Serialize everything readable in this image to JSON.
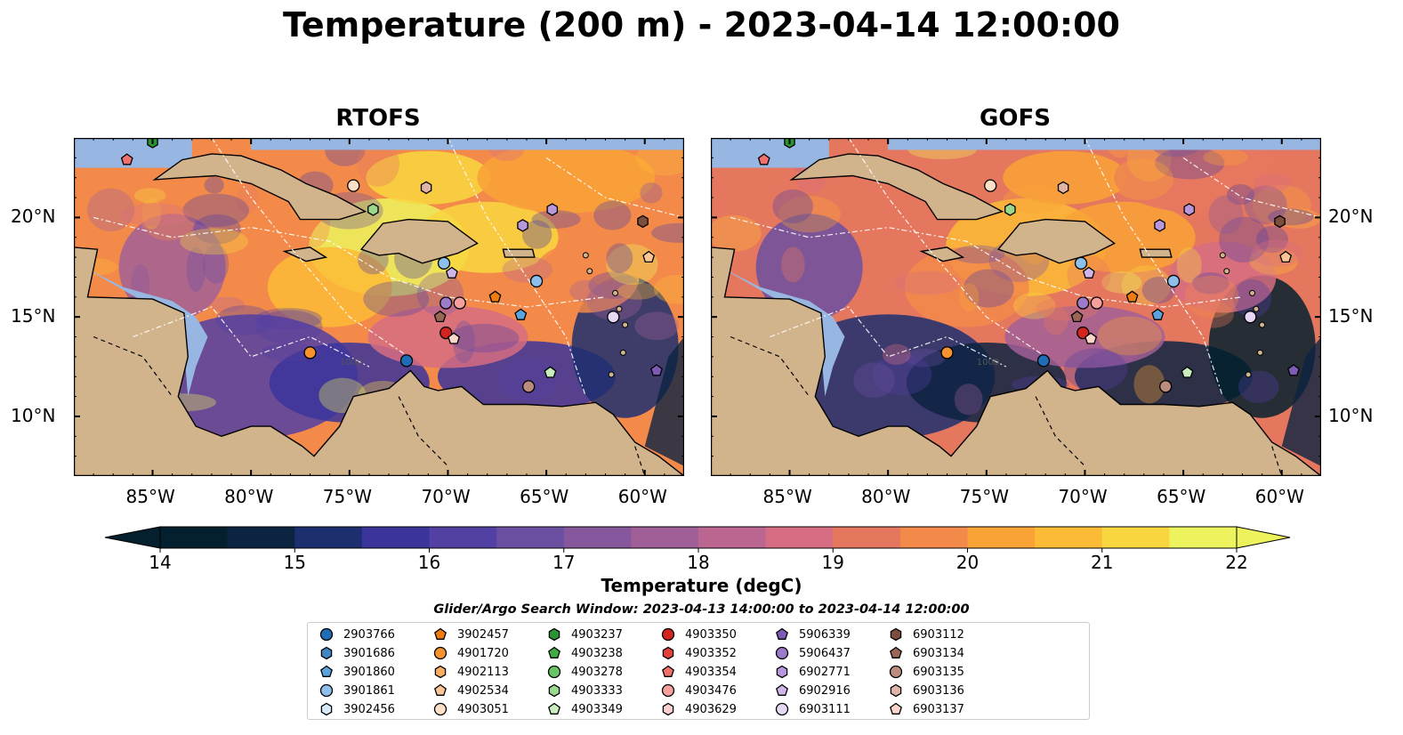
{
  "title": "Temperature (200 m) - 2023-04-14 12:00:00",
  "panels": [
    {
      "title": "RTOFS"
    },
    {
      "title": "GOFS"
    }
  ],
  "axes": {
    "lon_ticks": [
      "85°W",
      "80°W",
      "75°W",
      "70°W",
      "65°W",
      "60°W"
    ],
    "lat_ticks": [
      "20°N",
      "15°N",
      "10°N"
    ],
    "lon_range": [
      -89,
      -58
    ],
    "lat_range": [
      7,
      24
    ]
  },
  "colorbar": {
    "label": "Temperature (degC)",
    "ticks": [
      "14",
      "15",
      "16",
      "17",
      "18",
      "19",
      "20",
      "21",
      "22"
    ],
    "range": [
      14,
      22
    ],
    "extend": "both",
    "colors": [
      "#04202e",
      "#0c2342",
      "#1d2f6e",
      "#3b349b",
      "#5240a2",
      "#6b4fa0",
      "#87579d",
      "#a15f97",
      "#bb6690",
      "#d66d83",
      "#e6775f",
      "#f38a4a",
      "#f9a236",
      "#fcbb36",
      "#f8d63f",
      "#ecf35c"
    ]
  },
  "legend": {
    "title": "Glider/Argo Search Window: 2023-04-13 14:00:00 to 2023-04-14 12:00:00",
    "items": [
      {
        "label": "2903766",
        "marker": "circle",
        "color": "#1f6db5"
      },
      {
        "label": "3901686",
        "marker": "hexagon",
        "color": "#3f86c4"
      },
      {
        "label": "3901860",
        "marker": "pentagon",
        "color": "#5aa3dc"
      },
      {
        "label": "3901861",
        "marker": "circle",
        "color": "#8cc0ea"
      },
      {
        "label": "3902456",
        "marker": "hexagon",
        "color": "#d6eaf8"
      },
      {
        "label": "3902457",
        "marker": "pentagon",
        "color": "#ee7d11"
      },
      {
        "label": "4901720",
        "marker": "circle",
        "color": "#f7932e"
      },
      {
        "label": "4902113",
        "marker": "hexagon",
        "color": "#f8ac62"
      },
      {
        "label": "4902534",
        "marker": "pentagon",
        "color": "#fbc596"
      },
      {
        "label": "4903051",
        "marker": "circle",
        "color": "#fde0c6"
      },
      {
        "label": "4903237",
        "marker": "hexagon",
        "color": "#2a9433"
      },
      {
        "label": "4903238",
        "marker": "pentagon",
        "color": "#40ad44"
      },
      {
        "label": "4903278",
        "marker": "circle",
        "color": "#67c466"
      },
      {
        "label": "4903333",
        "marker": "hexagon",
        "color": "#9ad98d"
      },
      {
        "label": "4903349",
        "marker": "pentagon",
        "color": "#c8eec0"
      },
      {
        "label": "4903350",
        "marker": "circle",
        "color": "#d3251f"
      },
      {
        "label": "4903352",
        "marker": "hexagon",
        "color": "#e2403c"
      },
      {
        "label": "4903354",
        "marker": "pentagon",
        "color": "#f0716c"
      },
      {
        "label": "4903476",
        "marker": "circle",
        "color": "#f6a09d"
      },
      {
        "label": "4903629",
        "marker": "hexagon",
        "color": "#fbcfcd"
      },
      {
        "label": "5906339",
        "marker": "pentagon",
        "color": "#7b5bb4"
      },
      {
        "label": "5906437",
        "marker": "circle",
        "color": "#9c7bc9"
      },
      {
        "label": "6902771",
        "marker": "hexagon",
        "color": "#b898dc"
      },
      {
        "label": "6902916",
        "marker": "pentagon",
        "color": "#cfb6ea"
      },
      {
        "label": "6903111",
        "marker": "circle",
        "color": "#e6d7f5"
      },
      {
        "label": "6903112",
        "marker": "hexagon",
        "color": "#7d4e3c"
      },
      {
        "label": "6903134",
        "marker": "pentagon",
        "color": "#9a6757"
      },
      {
        "label": "6903135",
        "marker": "circle",
        "color": "#bb8b7d"
      },
      {
        "label": "6903136",
        "marker": "hexagon",
        "color": "#e0b5a7"
      },
      {
        "label": "6903137",
        "marker": "pentagon",
        "color": "#fbd6c9"
      }
    ]
  },
  "floats": [
    {
      "id": "4903237",
      "lon": -85,
      "lat": 23.8
    },
    {
      "id": "4903354",
      "lon": -86.3,
      "lat": 22.9
    },
    {
      "id": "4903051",
      "lon": -74.8,
      "lat": 21.6
    },
    {
      "id": "6903136",
      "lon": -71.1,
      "lat": 21.5
    },
    {
      "id": "4903333",
      "lon": -73.8,
      "lat": 20.4
    },
    {
      "id": "6902771",
      "lon": -66.2,
      "lat": 19.6
    },
    {
      "id": "6902771",
      "lon": -64.7,
      "lat": 20.4
    },
    {
      "id": "6903112",
      "lon": -60.1,
      "lat": 19.8
    },
    {
      "id": "4902534",
      "lon": -59.8,
      "lat": 18.0
    },
    {
      "id": "3901861",
      "lon": -70.2,
      "lat": 17.7
    },
    {
      "id": "6902916",
      "lon": -69.8,
      "lat": 17.2
    },
    {
      "id": "3901861",
      "lon": -65.5,
      "lat": 16.8
    },
    {
      "id": "3902457",
      "lon": -67.6,
      "lat": 16.0
    },
    {
      "id": "5906437",
      "lon": -70.1,
      "lat": 15.7
    },
    {
      "id": "4903476",
      "lon": -69.4,
      "lat": 15.7
    },
    {
      "id": "6903134",
      "lon": -70.4,
      "lat": 15.0
    },
    {
      "id": "3901860",
      "lon": -66.3,
      "lat": 15.1
    },
    {
      "id": "6903111",
      "lon": -61.6,
      "lat": 15.0
    },
    {
      "id": "4903350",
      "lon": -70.1,
      "lat": 14.2
    },
    {
      "id": "6903137",
      "lon": -69.7,
      "lat": 13.9
    },
    {
      "id": "4901720",
      "lon": -77.0,
      "lat": 13.2
    },
    {
      "id": "2903766",
      "lon": -72.1,
      "lat": 12.8
    },
    {
      "id": "4903349",
      "lon": -64.8,
      "lat": 12.2
    },
    {
      "id": "6903135",
      "lon": -65.9,
      "lat": 11.5
    },
    {
      "id": "5906339",
      "lon": -59.4,
      "lat": 12.3
    }
  ],
  "contour_label": "1000"
}
